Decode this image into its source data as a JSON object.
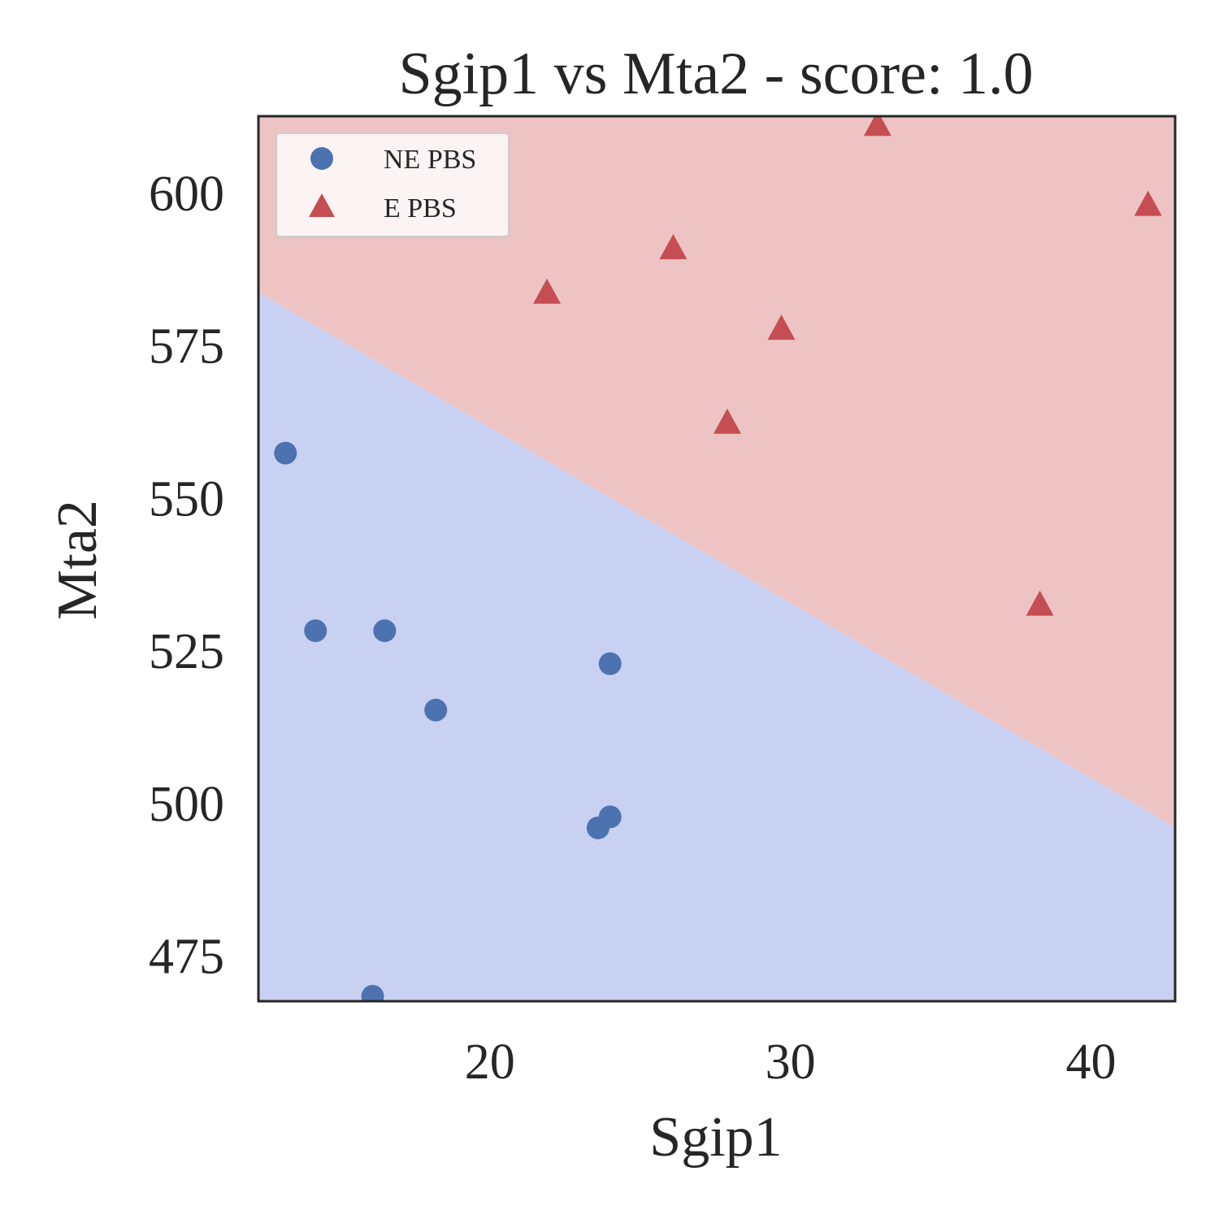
{
  "chart_data": {
    "type": "scatter",
    "title": "Sgip1 vs Mta2 - score: 1.0",
    "xlabel": "Sgip1",
    "ylabel": "Mta2",
    "xlim": [
      12.3,
      42.8
    ],
    "ylim": [
      467.5,
      612.5
    ],
    "x_ticks": [
      20,
      30,
      40
    ],
    "y_ticks": [
      475,
      500,
      525,
      550,
      575,
      600
    ],
    "grid": false,
    "legend_position": "top-left",
    "decision_boundary": {
      "points": [
        [
          12.3,
          583.6
        ],
        [
          42.8,
          496.0
        ]
      ],
      "upper_region_color": "#EDC4C3",
      "lower_region_color": "#C9D1F2"
    },
    "series": [
      {
        "name": "NE PBS",
        "marker": "circle",
        "color": "#4C72B0",
        "points": [
          [
            13.2,
            557.3
          ],
          [
            14.2,
            528.2
          ],
          [
            16.5,
            528.2
          ],
          [
            18.2,
            515.2
          ],
          [
            16.1,
            468.3
          ],
          [
            24.0,
            522.8
          ],
          [
            23.6,
            495.9
          ],
          [
            24.0,
            497.7
          ]
        ]
      },
      {
        "name": "E PBS",
        "marker": "triangle",
        "color": "#C44E52",
        "points": [
          [
            21.9,
            583.5
          ],
          [
            26.1,
            590.8
          ],
          [
            29.7,
            577.6
          ],
          [
            27.9,
            562.2
          ],
          [
            32.9,
            611.0
          ],
          [
            41.9,
            597.9
          ],
          [
            38.3,
            532.4
          ]
        ]
      }
    ]
  }
}
